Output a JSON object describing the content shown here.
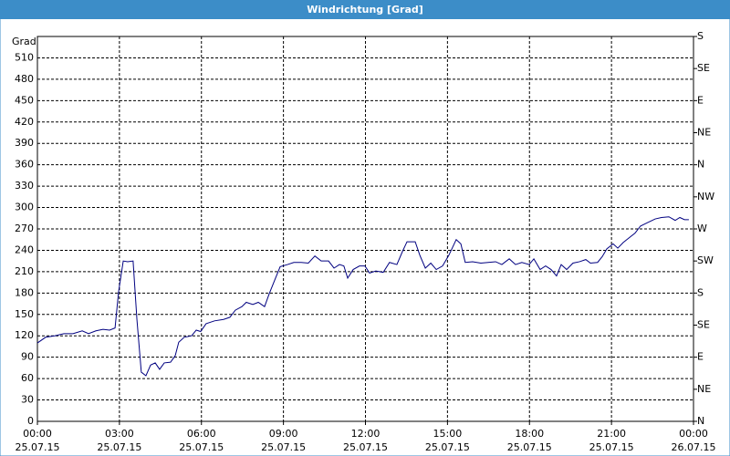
{
  "window_title": "Windrichtung [Grad]",
  "chart_data": {
    "type": "line",
    "ylabel": "Grad",
    "color": "#000080",
    "grid": true,
    "x": [
      0,
      0.3,
      0.63,
      0.97,
      1.3,
      1.64,
      1.87,
      2.14,
      2.4,
      2.64,
      2.84,
      2.97,
      3.14,
      3.3,
      3.5,
      3.64,
      3.8,
      3.97,
      4.14,
      4.31,
      4.47,
      4.64,
      4.87,
      5.04,
      5.17,
      5.37,
      5.64,
      5.81,
      5.97,
      6.17,
      6.48,
      6.81,
      7.04,
      7.24,
      7.48,
      7.64,
      7.88,
      8.08,
      8.31,
      8.48,
      8.71,
      8.88,
      9.15,
      9.38,
      9.65,
      9.91,
      10.15,
      10.38,
      10.65,
      10.85,
      11.05,
      11.21,
      11.35,
      11.55,
      11.78,
      11.98,
      12.15,
      12.38,
      12.65,
      12.88,
      13.15,
      13.35,
      13.52,
      13.82,
      13.99,
      14.19,
      14.39,
      14.59,
      14.82,
      15.05,
      15.32,
      15.49,
      15.65,
      15.92,
      16.22,
      16.49,
      16.76,
      16.99,
      17.26,
      17.49,
      17.72,
      17.99,
      18.16,
      18.39,
      18.59,
      18.79,
      18.99,
      19.16,
      19.36,
      19.59,
      19.83,
      20.06,
      20.23,
      20.49,
      20.66,
      20.83,
      21.06,
      21.23,
      21.43,
      21.66,
      21.86,
      22.06,
      22.33,
      22.6,
      22.83,
      23.1,
      23.33,
      23.5,
      23.67,
      23.83
    ],
    "values": [
      110,
      118,
      120,
      123,
      123,
      127,
      123,
      127,
      129,
      128,
      131,
      182,
      225,
      224,
      225,
      143,
      69,
      64,
      79,
      82,
      73,
      82,
      83,
      92,
      111,
      118,
      120,
      128,
      126,
      137,
      141,
      143,
      146,
      156,
      161,
      167,
      164,
      167,
      161,
      179,
      201,
      217,
      220,
      223,
      223,
      222,
      232,
      225,
      225,
      215,
      220,
      218,
      201,
      213,
      218,
      218,
      208,
      211,
      209,
      223,
      220,
      238,
      252,
      252,
      233,
      215,
      222,
      213,
      218,
      233,
      255,
      249,
      223,
      224,
      222,
      223,
      224,
      220,
      228,
      220,
      223,
      220,
      228,
      213,
      218,
      213,
      204,
      220,
      213,
      222,
      224,
      227,
      222,
      223,
      231,
      242,
      249,
      243,
      251,
      258,
      264,
      274,
      279,
      284,
      286,
      287,
      282,
      286,
      283,
      283
    ],
    "xlim": [
      0,
      24
    ],
    "xticks": [
      {
        "value": 0,
        "label": "00:00"
      },
      {
        "value": 3,
        "label": "03:00"
      },
      {
        "value": 6,
        "label": "06:00"
      },
      {
        "value": 9,
        "label": "09:00"
      },
      {
        "value": 12,
        "label": "12:00"
      },
      {
        "value": 15,
        "label": "15:00"
      },
      {
        "value": 18,
        "label": "18:00"
      },
      {
        "value": 21,
        "label": "21:00"
      },
      {
        "value": 24,
        "label": "00:00"
      }
    ],
    "xtick_dates": [
      "25.07.15",
      "25.07.15",
      "25.07.15",
      "25.07.15",
      "25.07.15",
      "25.07.15",
      "25.07.15",
      "25.07.15",
      "26.07.15"
    ],
    "ylim": [
      0,
      540
    ],
    "yticks": [
      0,
      30,
      60,
      90,
      120,
      150,
      180,
      210,
      240,
      270,
      300,
      330,
      360,
      390,
      420,
      450,
      480,
      510
    ],
    "y2lim": [
      0,
      540
    ],
    "y2ticks": [
      {
        "value": 0,
        "label": "N"
      },
      {
        "value": 45,
        "label": "NE"
      },
      {
        "value": 90,
        "label": "E"
      },
      {
        "value": 135,
        "label": "SE"
      },
      {
        "value": 180,
        "label": "S"
      },
      {
        "value": 225,
        "label": "SW"
      },
      {
        "value": 270,
        "label": "W"
      },
      {
        "value": 315,
        "label": "NW"
      },
      {
        "value": 360,
        "label": "N"
      },
      {
        "value": 405,
        "label": "NE"
      },
      {
        "value": 450,
        "label": "E"
      },
      {
        "value": 495,
        "label": "SE"
      },
      {
        "value": 540,
        "label": "S"
      }
    ]
  }
}
